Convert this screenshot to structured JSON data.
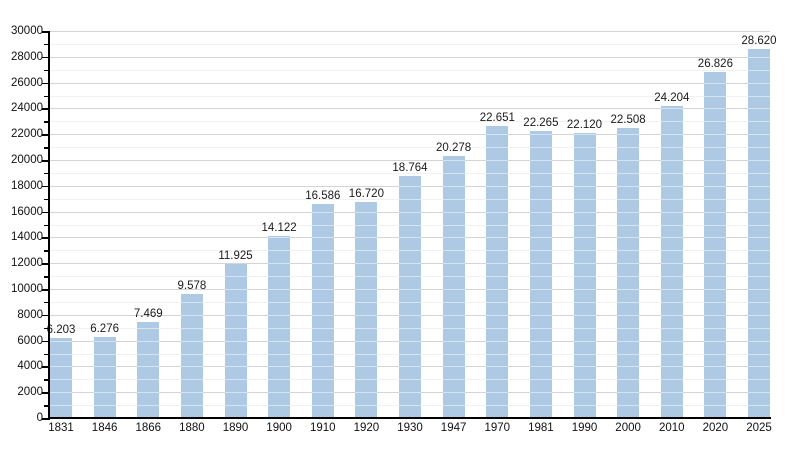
{
  "chart_data": {
    "type": "bar",
    "title": "",
    "xlabel": "",
    "ylabel": "",
    "categories": [
      "1831",
      "1846",
      "1866",
      "1880",
      "1890",
      "1900",
      "1910",
      "1920",
      "1930",
      "1947",
      "1970",
      "1981",
      "1990",
      "2000",
      "2010",
      "2020",
      "2025"
    ],
    "values": [
      6203,
      6276,
      7469,
      9578,
      11925,
      14122,
      16586,
      16720,
      18764,
      20278,
      22651,
      22265,
      22120,
      22508,
      24204,
      26826,
      28620
    ],
    "value_labels": [
      "6.203",
      "6.276",
      "7.469",
      "9.578",
      "11.925",
      "14.122",
      "16.586",
      "16.720",
      "18.764",
      "20.278",
      "22.651",
      "22.265",
      "22.120",
      "22.508",
      "24.204",
      "26.826",
      "28.620"
    ],
    "ylim": [
      0,
      30000
    ],
    "y_major_step": 2000,
    "y_minor_step": 1000,
    "y_tick_labels": [
      "0",
      "2000",
      "4000",
      "6000",
      "8000",
      "10000",
      "12000",
      "14000",
      "16000",
      "18000",
      "20000",
      "22000",
      "24000",
      "26000",
      "28000",
      "30000"
    ],
    "grid": "on",
    "legend": "none",
    "colors": {
      "bar_fill": "#adc9e4",
      "grid_major": "#a8a8a8",
      "grid_minor": "#e2e2e2",
      "axis": "#000000",
      "text": "#111111"
    }
  }
}
